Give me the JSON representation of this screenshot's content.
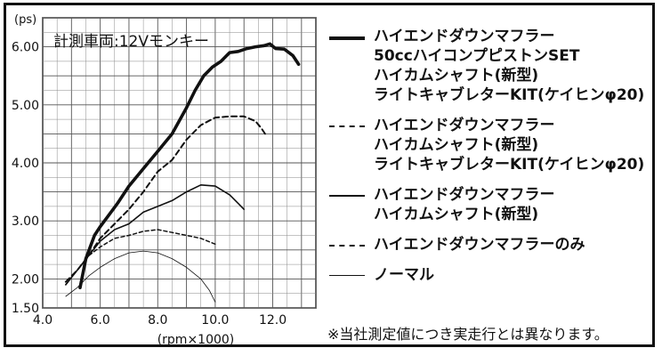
{
  "chart_data": {
    "type": "line",
    "title": "",
    "subtitle": "計測車両:12Vモンキー",
    "y_unit": "(ps)",
    "xlabel": "(rpm×1000)",
    "xlim": [
      4.0,
      13.5
    ],
    "ylim": [
      1.5,
      6.5
    ],
    "x_ticks": [
      "4.0",
      "6.0",
      "8.0",
      "10.0",
      "12.0"
    ],
    "y_ticks": [
      "1.50",
      "2.00",
      "3.00",
      "4.00",
      "5.00",
      "6.00"
    ],
    "grid": true,
    "legend_position": "right",
    "series": [
      {
        "name": "ハイエンドダウンマフラー\n50ccハイコンプピストンSET\nハイカムシャフト(新型)\nライトキャブレターKIT(ケイヒンφ20)",
        "style": "thick-solid",
        "x": [
          5.3,
          5.5,
          5.8,
          6.0,
          6.3,
          6.6,
          7.0,
          7.5,
          8.0,
          8.5,
          9.0,
          9.3,
          9.6,
          9.9,
          10.2,
          10.5,
          10.8,
          11.1,
          11.4,
          11.7,
          11.9,
          12.1,
          12.4,
          12.7,
          12.9
        ],
        "y": [
          1.85,
          2.35,
          2.75,
          2.9,
          3.1,
          3.3,
          3.6,
          3.9,
          4.2,
          4.5,
          4.95,
          5.25,
          5.5,
          5.65,
          5.75,
          5.9,
          5.92,
          5.97,
          6.0,
          6.02,
          6.05,
          5.97,
          5.96,
          5.85,
          5.7
        ]
      },
      {
        "name": "ハイエンドダウンマフラー\nハイカムシャフト(新型)\nライトキャブレターKIT(ケイヒンφ20)",
        "style": "dashed",
        "x": [
          4.8,
          5.2,
          5.6,
          6.0,
          6.5,
          7.0,
          7.5,
          8.0,
          8.5,
          9.0,
          9.5,
          10.0,
          10.5,
          11.0,
          11.4,
          11.6,
          11.8
        ],
        "y": [
          1.95,
          2.15,
          2.4,
          2.7,
          2.95,
          3.2,
          3.5,
          3.85,
          4.05,
          4.4,
          4.65,
          4.78,
          4.8,
          4.8,
          4.72,
          4.6,
          4.45
        ]
      },
      {
        "name": "ハイエンドダウンマフラー\nハイカムシャフト(新型)",
        "style": "solid",
        "x": [
          4.8,
          5.2,
          5.6,
          6.0,
          6.5,
          7.0,
          7.5,
          8.0,
          8.5,
          9.0,
          9.5,
          10.0,
          10.5,
          10.8,
          11.0
        ],
        "y": [
          1.9,
          2.15,
          2.4,
          2.65,
          2.85,
          2.95,
          3.15,
          3.25,
          3.35,
          3.5,
          3.62,
          3.6,
          3.45,
          3.3,
          3.2
        ]
      },
      {
        "name": "ハイエンドダウンマフラーのみ",
        "style": "short-dashed",
        "x": [
          4.8,
          5.2,
          5.6,
          6.0,
          6.5,
          7.0,
          7.5,
          8.0,
          8.5,
          9.0,
          9.5,
          10.0
        ],
        "y": [
          1.9,
          2.15,
          2.4,
          2.55,
          2.7,
          2.75,
          2.82,
          2.85,
          2.8,
          2.75,
          2.7,
          2.6
        ]
      },
      {
        "name": "ノーマル",
        "style": "thin-solid",
        "x": [
          4.8,
          5.2,
          5.6,
          6.0,
          6.5,
          7.0,
          7.5,
          8.0,
          8.5,
          9.0,
          9.5,
          9.8,
          10.0
        ],
        "y": [
          1.7,
          1.85,
          2.05,
          2.2,
          2.35,
          2.45,
          2.48,
          2.45,
          2.35,
          2.2,
          2.0,
          1.8,
          1.6
        ]
      }
    ]
  },
  "note": "※当社測定値につき実走行とは異なります。"
}
